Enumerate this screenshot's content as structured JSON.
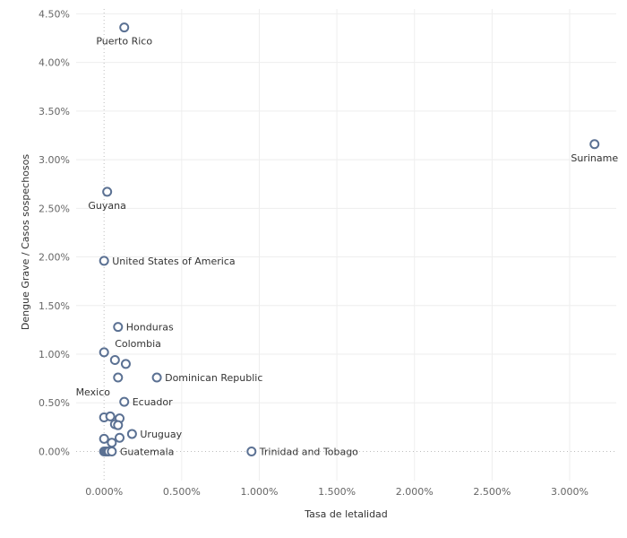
{
  "chart_data": {
    "type": "scatter",
    "title": "",
    "xlabel": "Tasa de letalidad",
    "ylabel": "Dengue Grave / Casos sospechosos",
    "xlim": [
      -0.0018,
      0.033
    ],
    "ylim": [
      -0.003,
      0.0455
    ],
    "xticks": [
      0,
      0.005,
      0.01,
      0.015,
      0.02,
      0.025,
      0.03
    ],
    "xtick_labels": [
      "0.000%",
      "0.500%",
      "1.000%",
      "1.500%",
      "2.000%",
      "2.500%",
      "3.000%"
    ],
    "yticks": [
      0,
      0.005,
      0.01,
      0.015,
      0.02,
      0.025,
      0.03,
      0.035,
      0.04,
      0.045
    ],
    "ytick_labels": [
      "0.00%",
      "0.50%",
      "1.00%",
      "1.50%",
      "2.00%",
      "2.50%",
      "3.00%",
      "3.50%",
      "4.00%",
      "4.50%"
    ],
    "grid": true,
    "marker_color": "#5b7193",
    "points": [
      {
        "label": "Puerto Rico",
        "x": 0.0013,
        "y": 0.0436,
        "label_pos": "below"
      },
      {
        "label": "Suriname",
        "x": 0.0316,
        "y": 0.0316,
        "label_pos": "below"
      },
      {
        "label": "Guyana",
        "x": 0.0002,
        "y": 0.0267,
        "label_pos": "below"
      },
      {
        "label": "United States of America",
        "x": 0.0,
        "y": 0.0196,
        "label_pos": "right"
      },
      {
        "label": "Honduras",
        "x": 0.0009,
        "y": 0.0128,
        "label_pos": "right"
      },
      {
        "label": "Colombia",
        "x": 0.0,
        "y": 0.0102,
        "label_pos": "above-right"
      },
      {
        "label": "",
        "x": 0.0007,
        "y": 0.0094
      },
      {
        "label": "",
        "x": 0.0014,
        "y": 0.009
      },
      {
        "label": "Dominican Republic",
        "x": 0.0034,
        "y": 0.0076,
        "label_pos": "right"
      },
      {
        "label": "Mexico",
        "x": 0.0009,
        "y": 0.0076,
        "label_pos": "below-left"
      },
      {
        "label": "Ecuador",
        "x": 0.0013,
        "y": 0.0051,
        "label_pos": "right"
      },
      {
        "label": "",
        "x": 0.0,
        "y": 0.0035
      },
      {
        "label": "",
        "x": 0.0004,
        "y": 0.0036
      },
      {
        "label": "",
        "x": 0.001,
        "y": 0.0034
      },
      {
        "label": "",
        "x": 0.0007,
        "y": 0.0028
      },
      {
        "label": "",
        "x": 0.0009,
        "y": 0.0027
      },
      {
        "label": "Uruguay",
        "x": 0.0018,
        "y": 0.0018,
        "label_pos": "right"
      },
      {
        "label": "",
        "x": 0.0,
        "y": 0.0013
      },
      {
        "label": "",
        "x": 0.001,
        "y": 0.0014
      },
      {
        "label": "",
        "x": 0.0005,
        "y": 0.0009
      },
      {
        "label": "",
        "x": 0.0,
        "y": 0.0
      },
      {
        "label": "",
        "x": 0.0001,
        "y": 0.0
      },
      {
        "label": "",
        "x": 0.0002,
        "y": 0.0
      },
      {
        "label": "",
        "x": 0.0003,
        "y": 0.0
      },
      {
        "label": "Guatemala",
        "x": 0.0005,
        "y": 0.0,
        "label_pos": "right"
      },
      {
        "label": "Trinidad and Tobago",
        "x": 0.0095,
        "y": 0.0,
        "label_pos": "right"
      }
    ]
  }
}
